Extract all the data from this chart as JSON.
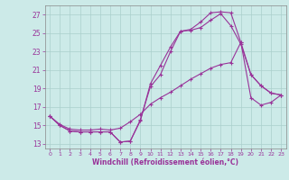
{
  "xlabel": "Windchill (Refroidissement éolien,°C)",
  "background_color": "#cceae8",
  "grid_color": "#aacfcc",
  "line_color": "#993399",
  "ylim": [
    12.5,
    28.0
  ],
  "xlim": [
    -0.5,
    23.5
  ],
  "yticks": [
    13,
    15,
    17,
    19,
    21,
    23,
    25,
    27
  ],
  "xticks": [
    0,
    1,
    2,
    3,
    4,
    5,
    6,
    7,
    8,
    9,
    10,
    11,
    12,
    13,
    14,
    15,
    16,
    17,
    18,
    19,
    20,
    21,
    22,
    23
  ],
  "line1_x": [
    0,
    1,
    2,
    3,
    4,
    5,
    6,
    7,
    8,
    9,
    10,
    11,
    12,
    13,
    14,
    15,
    16,
    17,
    18,
    19,
    20,
    21,
    22,
    23
  ],
  "line1_y": [
    16.0,
    15.0,
    14.4,
    14.3,
    14.3,
    14.3,
    14.3,
    13.2,
    13.3,
    15.5,
    19.5,
    21.5,
    23.5,
    25.2,
    25.4,
    26.2,
    27.2,
    27.3,
    27.2,
    24.0,
    20.5,
    19.3,
    18.5,
    18.3
  ],
  "line2_x": [
    0,
    1,
    2,
    3,
    4,
    5,
    6,
    7,
    8,
    9,
    10,
    11,
    12,
    13,
    14,
    15,
    16,
    17,
    18,
    19,
    20,
    21,
    22,
    23
  ],
  "line2_y": [
    16.0,
    15.0,
    14.4,
    14.3,
    14.3,
    14.3,
    14.3,
    13.2,
    13.3,
    15.6,
    19.2,
    20.5,
    23.0,
    25.2,
    25.3,
    25.6,
    26.4,
    27.1,
    25.8,
    23.8,
    20.5,
    19.3,
    18.5,
    18.3
  ],
  "line3_x": [
    0,
    1,
    2,
    3,
    4,
    5,
    6,
    7,
    8,
    9,
    10,
    11,
    12,
    13,
    14,
    15,
    16,
    17,
    18,
    19,
    20,
    21,
    22,
    23
  ],
  "line3_y": [
    16.0,
    15.1,
    14.6,
    14.5,
    14.5,
    14.6,
    14.5,
    14.7,
    15.4,
    16.2,
    17.3,
    18.0,
    18.6,
    19.3,
    20.0,
    20.6,
    21.2,
    21.6,
    21.8,
    24.0,
    18.0,
    17.2,
    17.5,
    18.3
  ]
}
